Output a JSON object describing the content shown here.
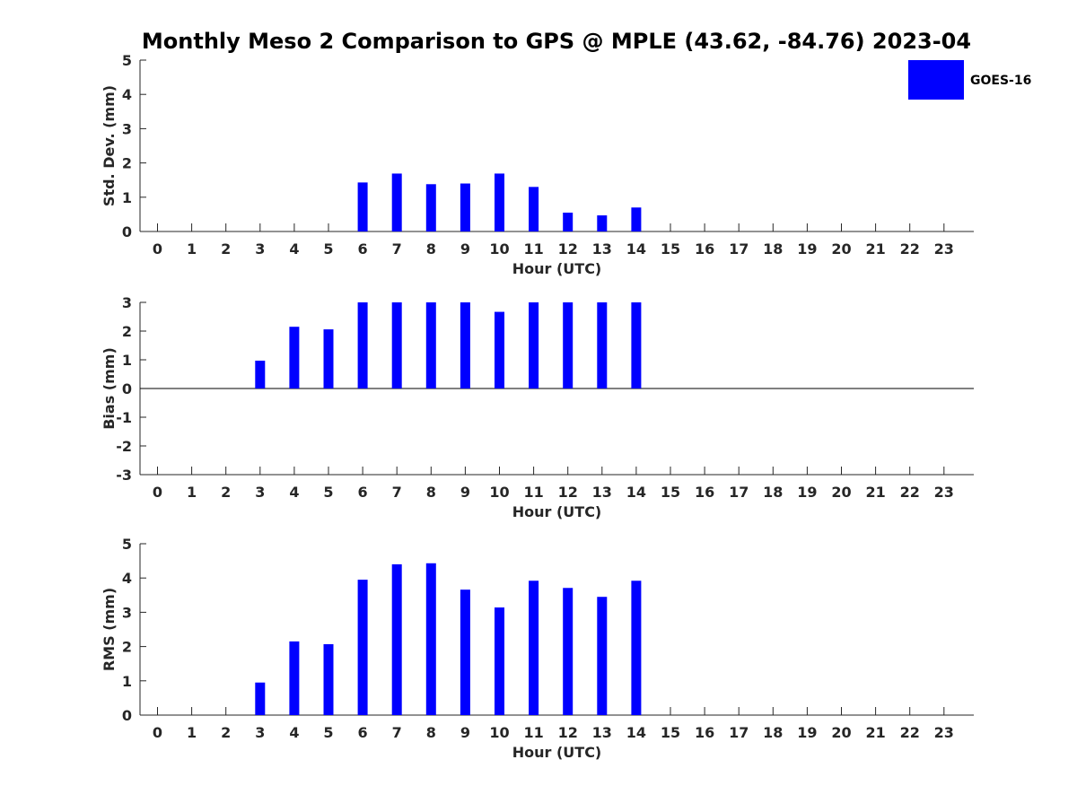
{
  "title": "Monthly Meso 2 Comparison to GPS @ MPLE (43.62, -84.76) 2023-04",
  "legend": {
    "label": "GOES-16",
    "color": "#0000ff",
    "placement": "top-right"
  },
  "colors": {
    "bar": "#0000ff",
    "axis": "#262626",
    "zero_line": "#000000"
  },
  "chart_data": [
    {
      "type": "bar",
      "id": "std",
      "xlabel": "Hour (UTC)",
      "ylabel": "Std. Dev. (mm)",
      "ylim": [
        0,
        5
      ],
      "yticks": [
        0,
        1,
        2,
        3,
        4,
        5
      ],
      "categories": [
        "0",
        "1",
        "2",
        "3",
        "4",
        "5",
        "6",
        "7",
        "8",
        "9",
        "10",
        "11",
        "12",
        "13",
        "14",
        "15",
        "16",
        "17",
        "18",
        "19",
        "20",
        "21",
        "22",
        "23"
      ],
      "series": [
        {
          "name": "GOES-16",
          "values": [
            null,
            null,
            null,
            null,
            null,
            null,
            1.43,
            1.69,
            1.38,
            1.4,
            1.69,
            1.3,
            0.55,
            0.47,
            0.7,
            null,
            null,
            null,
            null,
            null,
            null,
            null,
            null,
            null
          ]
        }
      ],
      "grid": false
    },
    {
      "type": "bar",
      "id": "bias",
      "xlabel": "Hour (UTC)",
      "ylabel": "Bias (mm)",
      "ylim": [
        -3,
        3
      ],
      "yticks": [
        -3,
        -2,
        -1,
        0,
        1,
        2,
        3
      ],
      "categories": [
        "0",
        "1",
        "2",
        "3",
        "4",
        "5",
        "6",
        "7",
        "8",
        "9",
        "10",
        "11",
        "12",
        "13",
        "14",
        "15",
        "16",
        "17",
        "18",
        "19",
        "20",
        "21",
        "22",
        "23"
      ],
      "series": [
        {
          "name": "GOES-16",
          "values": [
            null,
            null,
            null,
            0.97,
            2.15,
            2.06,
            3,
            3,
            3,
            3,
            2.67,
            3,
            3,
            3,
            3,
            null,
            null,
            null,
            null,
            null,
            null,
            null,
            null,
            null
          ]
        }
      ],
      "zero_line": true,
      "grid": false
    },
    {
      "type": "bar",
      "id": "rms",
      "xlabel": "Hour (UTC)",
      "ylabel": "RMS (mm)",
      "ylim": [
        0,
        5
      ],
      "yticks": [
        0,
        1,
        2,
        3,
        4,
        5
      ],
      "categories": [
        "0",
        "1",
        "2",
        "3",
        "4",
        "5",
        "6",
        "7",
        "8",
        "9",
        "10",
        "11",
        "12",
        "13",
        "14",
        "15",
        "16",
        "17",
        "18",
        "19",
        "20",
        "21",
        "22",
        "23"
      ],
      "series": [
        {
          "name": "GOES-16",
          "values": [
            null,
            null,
            null,
            0.95,
            2.15,
            2.07,
            3.95,
            4.4,
            4.43,
            3.66,
            3.14,
            3.92,
            3.71,
            3.45,
            3.92,
            null,
            null,
            null,
            null,
            null,
            null,
            null,
            null,
            null
          ]
        }
      ],
      "grid": false
    }
  ]
}
